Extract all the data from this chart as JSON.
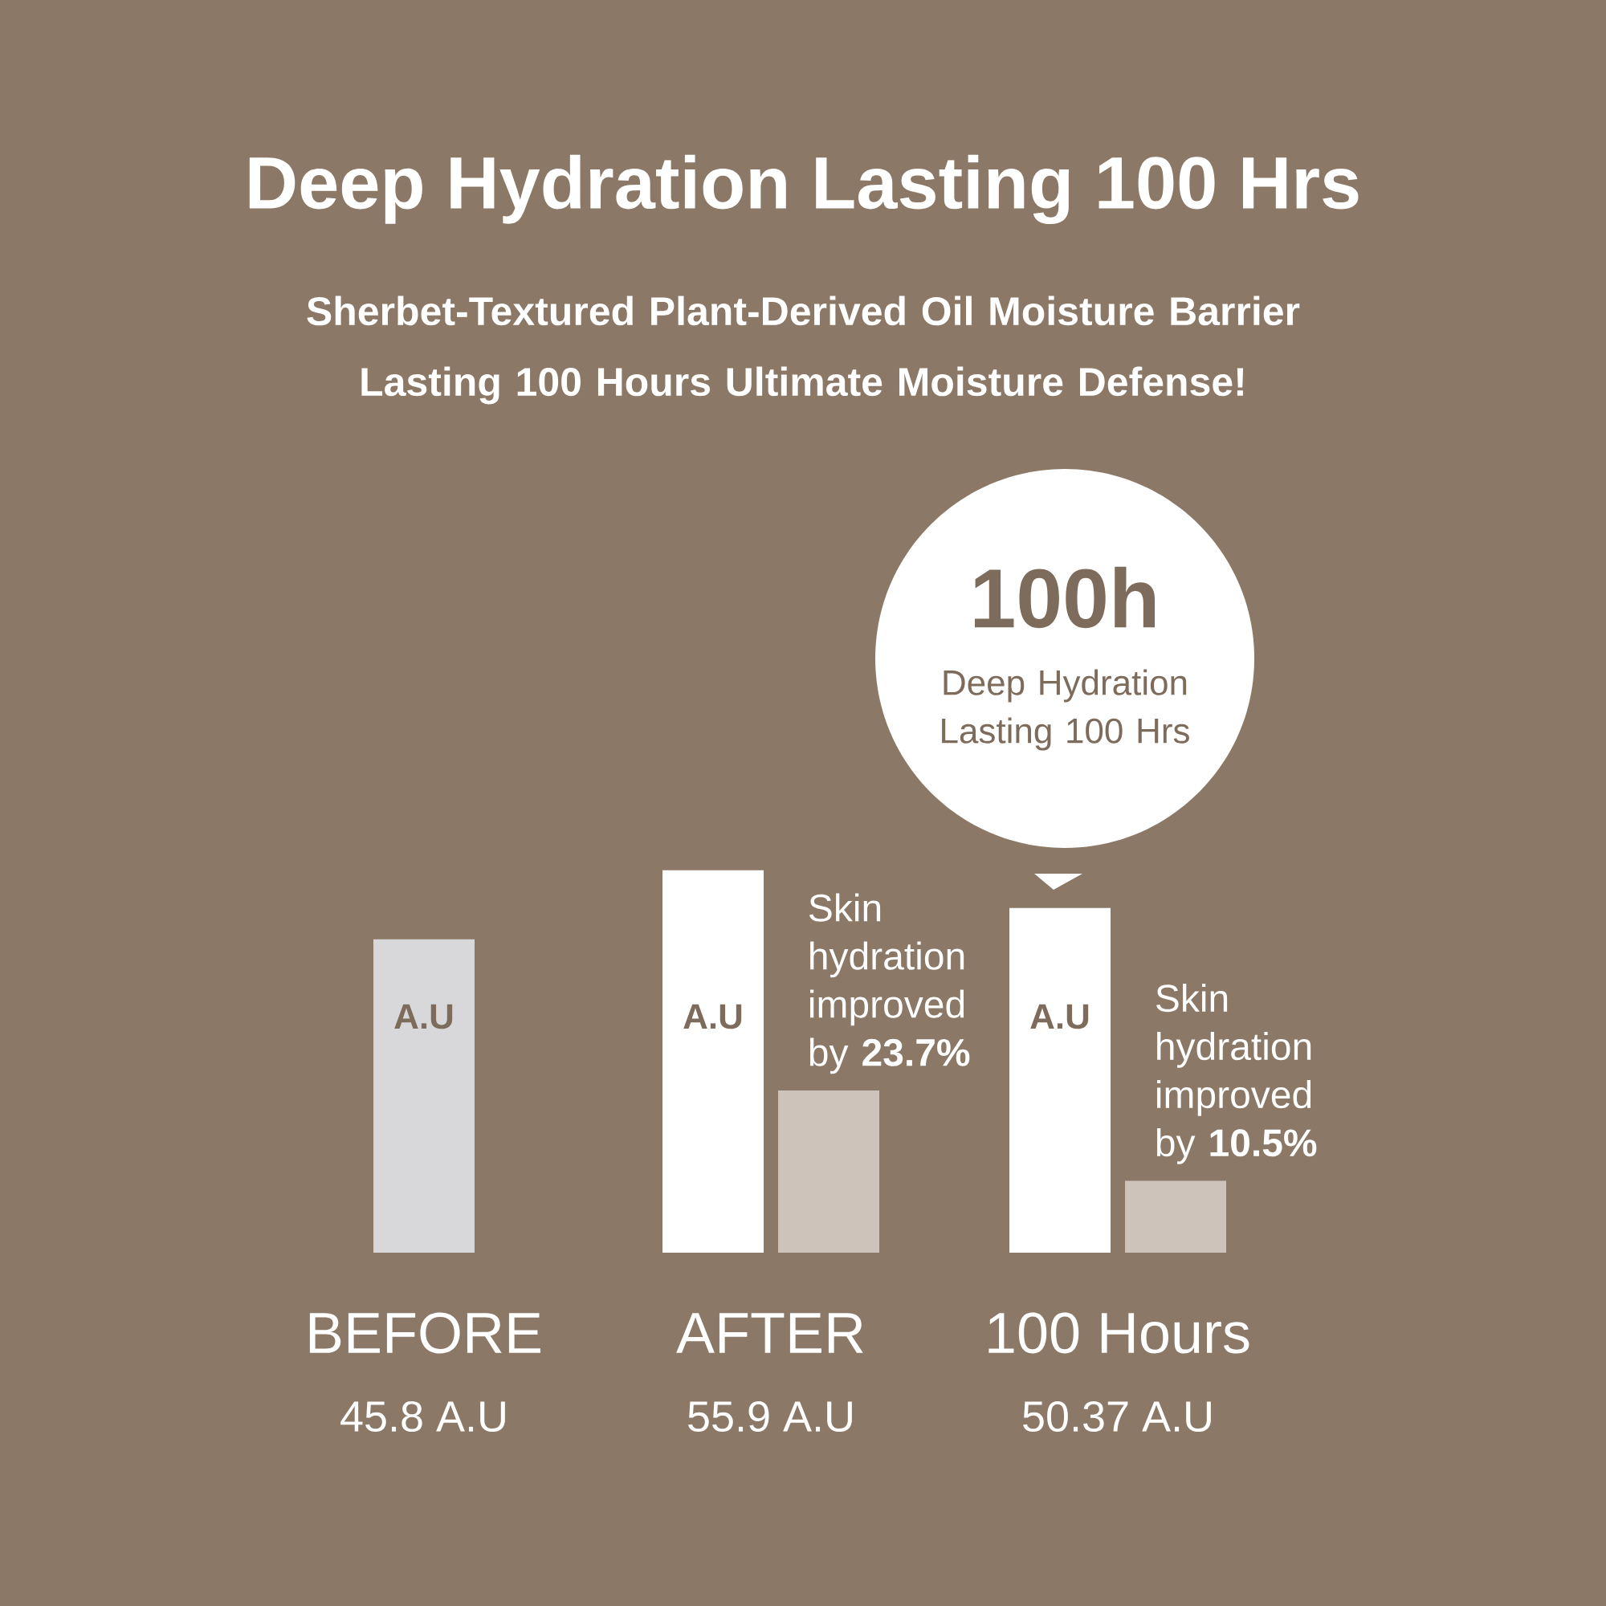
{
  "chart_data": {
    "type": "bar",
    "title": "Deep Hydration Lasting 100 Hrs",
    "subtitle": "Sherbet-Textured Plant-Derived Oil Moisture Barrier Lasting 100 Hours Ultimate Moisture Defense!",
    "categories": [
      "BEFORE",
      "AFTER",
      "100 Hours"
    ],
    "series": [
      {
        "colors": [
          "#d8d8da",
          "#ffffff",
          "#ffffff"
        ],
        "values": [
          45.8,
          55.9,
          50.37
        ],
        "value_labels": [
          "45.8 A.U",
          "55.9 A.U",
          "50.37 A.U"
        ]
      },
      {
        "color": "#cdc3ba",
        "values": [
          null,
          23.7,
          10.5
        ],
        "value_labels": [
          null,
          "Skin hydration improved by **23.7%**",
          "Skin hydration improved by **10.5%**"
        ]
      }
    ],
    "tick_labels": "x",
    "annotations": [
      "100h",
      "Deep Hydration Lasting 100 Hrs",
      "A.U",
      "A.U",
      "A.U"
    ]
  }
}
